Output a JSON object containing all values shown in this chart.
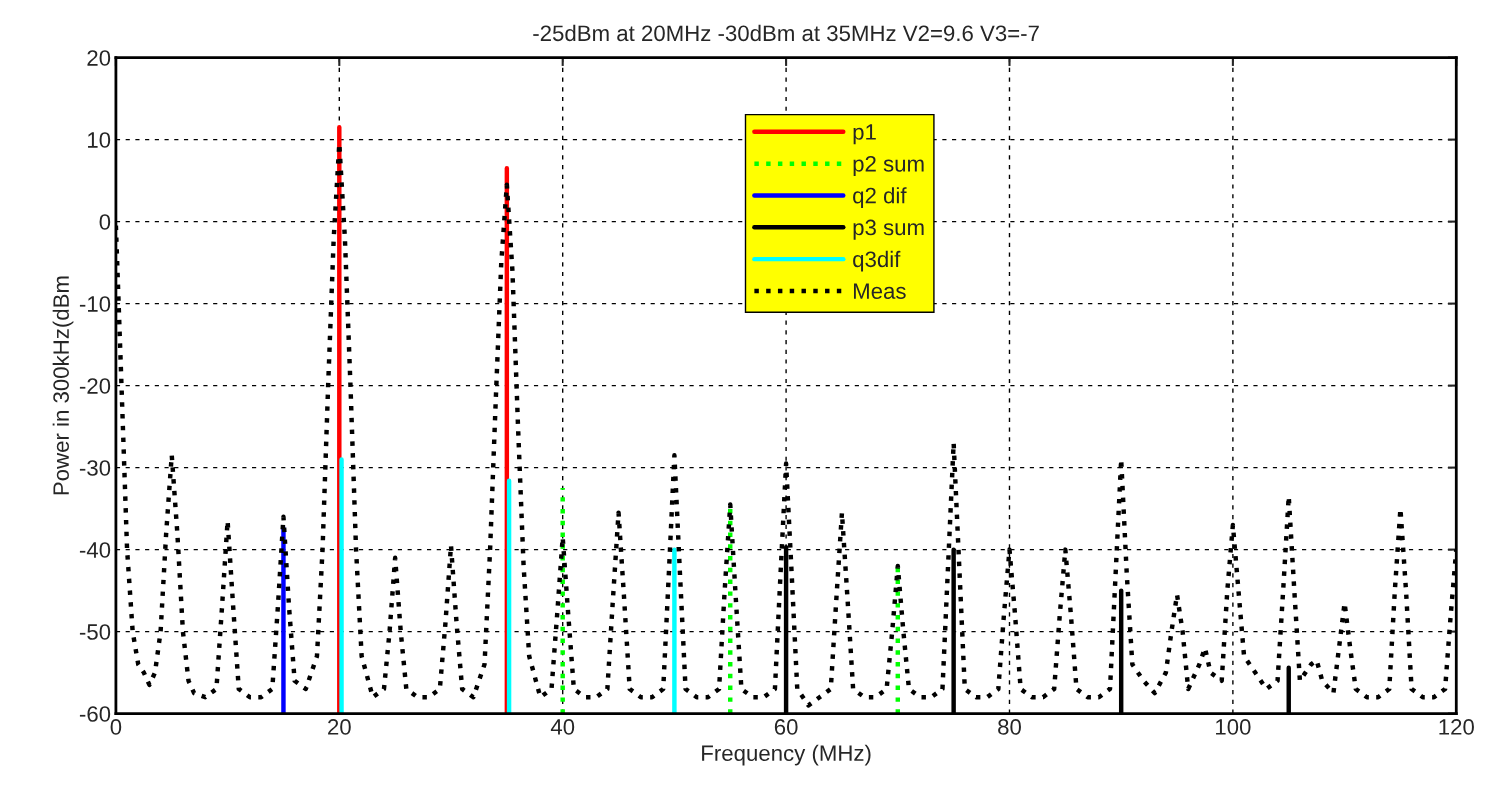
{
  "chart_data": {
    "type": "line",
    "title": "-25dBm at 20MHz -30dBm at 35MHz V2=9.6 V3=-7",
    "xlabel": "Frequency (MHz)",
    "ylabel": "Power in 300kHz(dBm",
    "xlim": [
      0,
      120
    ],
    "ylim": [
      -60,
      20
    ],
    "xticks": [
      0,
      20,
      40,
      60,
      80,
      100,
      120
    ],
    "yticks": [
      -60,
      -50,
      -40,
      -30,
      -20,
      -10,
      0,
      10,
      20
    ],
    "grid": true,
    "legend": "top",
    "marker": "none",
    "series": [
      {
        "name": "p1",
        "color": "#ff0000",
        "line_style": "solid",
        "x": [
          20,
          20,
          null,
          35,
          35
        ],
        "values": [
          -60,
          11.5,
          null,
          -60,
          6.5
        ]
      },
      {
        "name": "p2 sum",
        "color": "#00ff00",
        "line_style": "dotted",
        "x": [
          40,
          40,
          null,
          55,
          55,
          null,
          70,
          70
        ],
        "values": [
          -60,
          -32.5,
          null,
          -60,
          -34.3,
          null,
          -60,
          -42.1
        ]
      },
      {
        "name": "q2 dif",
        "color": "#0000ff",
        "line_style": "solid",
        "x": [
          15,
          15
        ],
        "values": [
          -60,
          -37.4
        ]
      },
      {
        "name": "p3 sum",
        "color": "#000000",
        "line_style": "solid",
        "x": [
          60,
          60,
          null,
          75,
          75,
          null,
          90,
          90,
          null,
          105,
          105
        ],
        "values": [
          -60,
          -39.7,
          null,
          -60,
          -40,
          null,
          -60,
          -45,
          null,
          -60,
          -54.4
        ]
      },
      {
        "name": "q3dif",
        "color": "#00ffff",
        "line_style": "solid",
        "x": [
          20.2,
          20.2,
          null,
          35.2,
          35.2,
          null,
          50,
          50
        ],
        "values": [
          -60,
          -29,
          null,
          -60,
          -31.6,
          null,
          -60,
          -40
        ]
      },
      {
        "name": "Meas",
        "color": "#000000",
        "line_style": "dotted",
        "x": [
          0,
          0.5,
          1,
          1.5,
          2,
          2.5,
          3,
          3.5,
          4,
          4.5,
          5,
          5.5,
          6,
          6.5,
          7,
          8,
          9,
          9.5,
          10,
          10.5,
          11,
          12,
          13,
          14,
          14.5,
          15,
          15.5,
          16,
          17,
          18,
          18.5,
          19,
          19.5,
          20,
          20.5,
          21,
          21.5,
          22,
          23,
          24,
          24.5,
          25,
          25.5,
          26,
          27,
          28,
          29,
          29.5,
          30,
          30.5,
          31,
          32,
          33,
          33.5,
          34,
          34.5,
          35,
          35.5,
          36,
          36.5,
          37,
          38,
          39,
          39.5,
          40,
          40.5,
          41,
          42,
          43,
          44,
          44.5,
          45,
          45.5,
          46,
          47,
          48,
          49,
          49.5,
          50,
          50.5,
          51,
          52,
          53,
          54,
          54.5,
          55,
          55.5,
          56,
          57,
          58,
          59,
          59.5,
          60,
          60.5,
          61,
          62,
          63,
          64,
          64.5,
          65,
          65.5,
          66,
          67,
          68,
          69,
          69.5,
          70,
          70.5,
          71,
          72,
          73,
          74,
          74.5,
          75,
          75.5,
          76,
          77,
          78,
          79,
          79.5,
          80,
          80.5,
          81,
          82,
          83,
          84,
          84.5,
          85,
          85.5,
          86,
          87,
          88,
          89,
          89.5,
          90,
          90.5,
          91,
          92,
          93,
          94,
          94.5,
          95,
          95.5,
          96,
          97,
          97.5,
          98,
          99,
          99.5,
          100,
          100.5,
          101,
          102,
          103,
          104,
          104.5,
          105,
          105.5,
          106,
          107,
          107.5,
          108,
          109,
          109.5,
          110,
          110.5,
          111,
          112,
          113,
          114,
          114.5,
          115,
          115.5,
          116,
          117,
          118,
          119,
          119.5,
          120
        ],
        "values": [
          -0.5,
          -20,
          -40,
          -50,
          -54,
          -55,
          -56.5,
          -55,
          -50,
          -38,
          -28.5,
          -38,
          -50,
          -56,
          -57.5,
          -58,
          -57,
          -47,
          -36.5,
          -47,
          -57,
          -58,
          -58,
          -57,
          -47,
          -36,
          -47,
          -56,
          -57,
          -53,
          -40,
          -20,
          -2,
          9.5,
          -2,
          -20,
          -40,
          -53,
          -58,
          -57,
          -50,
          -41,
          -50,
          -57,
          -58,
          -58,
          -57,
          -49,
          -39.5,
          -49,
          -57,
          -58,
          -54,
          -40,
          -22,
          -5,
          4.5,
          -6,
          -25,
          -42,
          -53,
          -58,
          -57,
          -48,
          -38.5,
          -48,
          -57,
          -58,
          -58,
          -57,
          -46,
          -35.5,
          -46,
          -57,
          -58,
          -58,
          -57,
          -43,
          -28.5,
          -43,
          -57,
          -58,
          -58,
          -57,
          -45,
          -34.5,
          -46,
          -57,
          -58,
          -58,
          -57,
          -43,
          -29.5,
          -43,
          -57,
          -59,
          -58,
          -57,
          -46,
          -35.5,
          -46,
          -57,
          -58,
          -58,
          -57,
          -50,
          -42,
          -50,
          -57,
          -58,
          -58,
          -57,
          -42,
          -27,
          -42,
          -57,
          -58,
          -58,
          -57,
          -48,
          -40,
          -48,
          -57,
          -58,
          -58,
          -57,
          -48,
          -40,
          -48,
          -57,
          -58,
          -58,
          -57,
          -43,
          -29,
          -43,
          -54,
          -56,
          -57.5,
          -55,
          -50,
          -45.5,
          -50,
          -57,
          -54,
          -52,
          -55,
          -56,
          -45,
          -37,
          -45,
          -53,
          -55,
          -57,
          -56,
          -45,
          -33.5,
          -45,
          -56,
          -54,
          -53.5,
          -56,
          -57.5,
          -52,
          -46.5,
          -52,
          -57,
          -58,
          -58,
          -57,
          -45,
          -35,
          -45,
          -57,
          -58,
          -58,
          -57,
          -48,
          -40
        ]
      }
    ]
  }
}
